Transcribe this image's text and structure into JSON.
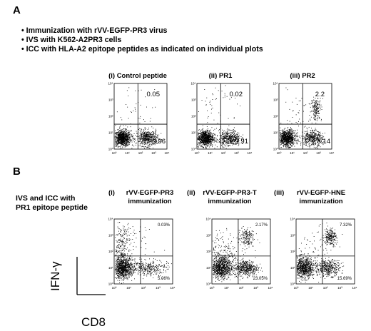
{
  "figure": {
    "panel_a": {
      "letter": "A",
      "bullets": [
        "Immunization with rVV-EGFP-PR3 virus",
        "IVS with K562-A2PR3 cells",
        "ICC with HLA-A2 epitope peptides as indicated on individual plots"
      ],
      "plots": [
        {
          "title": "(i) Control peptide",
          "upper_right": "0.05",
          "lower_right": "9.96"
        },
        {
          "title": "(ii) PR1",
          "upper_right": "0.02",
          "lower_right": "9.91"
        },
        {
          "title": "(iii) PR2",
          "upper_right": "2.2",
          "lower_right": "8.14"
        }
      ],
      "tick_labels": [
        "10⁰",
        "10¹",
        "10²",
        "10³",
        "10⁴"
      ]
    },
    "panel_b": {
      "letter": "B",
      "side_label": [
        "IVS and ICC with",
        "PR1 epitope peptide"
      ],
      "plots": [
        {
          "title": "(i)",
          "subtitle": [
            "rVV-EGFP-PR3",
            "immunization"
          ],
          "upper_right": "0.03%",
          "lower_right": "5.06%"
        },
        {
          "title": "(ii)",
          "subtitle": [
            "rVV-EGFP-PR3-T",
            "immunization"
          ],
          "upper_right": "2.17%",
          "lower_right": "23.05%"
        },
        {
          "title": "(iii)",
          "subtitle": [
            "rVV-EGFP-HNE",
            "immunization"
          ],
          "upper_right": "7.32%",
          "lower_right": "15.69%"
        }
      ],
      "tick_labels": [
        "10⁰",
        "10¹",
        "10²",
        "10³",
        "10⁴"
      ],
      "y_axis_label": "IFN-γ",
      "x_axis_label": "CD8"
    }
  }
}
